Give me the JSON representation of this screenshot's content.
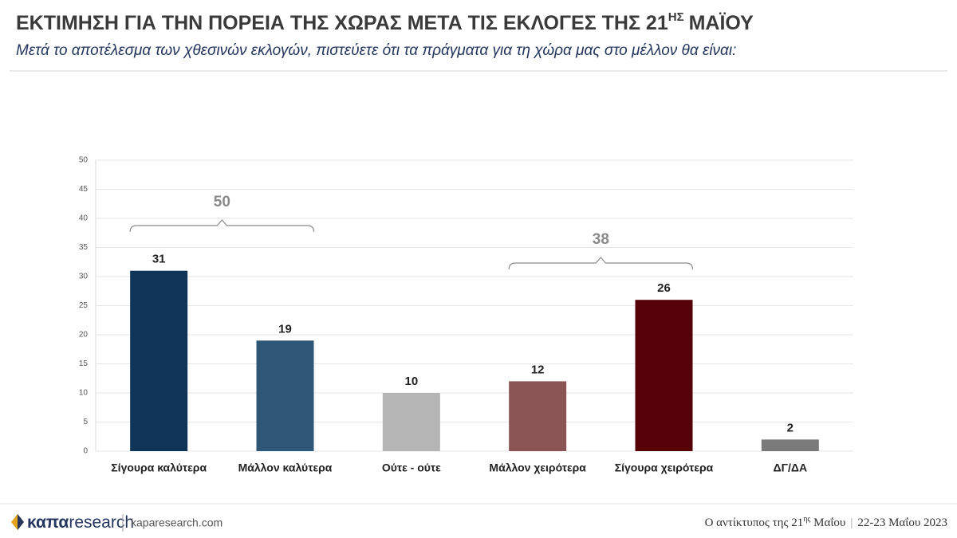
{
  "chart_data": {
    "type": "bar",
    "title": [
      "ΕΚΤΙΜΗΣΗ ΓΙΑ ΤΗΝ ΠΟΡΕΙΑ ΤΗΣ ΧΩΡΑΣ ΜΕΤΑ ΤΙΣ ΕΚΛΟΓΕΣ ΤΗΣ 21",
      "ΗΣ",
      "ΜΑΪΟΥ"
    ],
    "subtitle": "Μετά το αποτέλεσμα των χθεσινών εκλογών, πιστεύετε ότι τα πράγματα για τη χώρα μας στο μέλλον θα είναι:",
    "categories": [
      "Σίγουρα καλύτερα",
      "Μάλλον καλύτερα",
      "Ούτε - ούτε",
      "Μάλλον χειρότερα",
      "Σίγουρα χειρότερα",
      "ΔΓ/ΔΑ"
    ],
    "values": [
      31,
      19,
      10,
      12,
      26,
      2
    ],
    "colors": [
      "#0f3457",
      "#2e5676",
      "#b5b5b5",
      "#8b5454",
      "#560007",
      "#7a7a7a"
    ],
    "ylim": [
      0,
      50
    ],
    "yticks": [
      0,
      5,
      10,
      15,
      20,
      25,
      30,
      35,
      40,
      45,
      50
    ],
    "grid": true,
    "annotations": [
      50,
      38
    ]
  },
  "footer": {
    "logo": [
      "καπα",
      "research"
    ],
    "site": "kaparesearch.com",
    "note": [
      "Ο αντίκτυπος της 21",
      "ης",
      " Μαΐου",
      "22-23 Μαΐου 2023"
    ]
  }
}
